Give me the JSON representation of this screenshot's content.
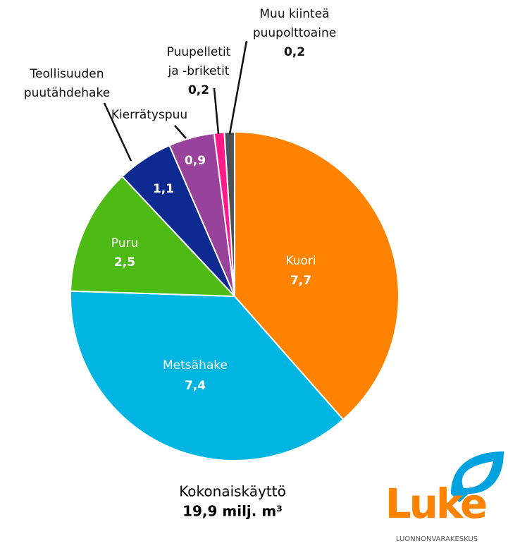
{
  "chart_data": {
    "type": "pie",
    "categories": [
      "Kuori",
      "Metsähake",
      "Puru",
      "Teollisuuden\npuutähdehake",
      "Kierrätyspuu",
      "Puupelletit\nja -briketit",
      "Muu kiinteä\npuupolttoaine"
    ],
    "values": [
      7.7,
      7.4,
      2.5,
      1.1,
      0.9,
      0.2,
      0.2
    ],
    "value_labels": [
      "7,7",
      "7,4",
      "2,5",
      "1,1",
      "0,9",
      "0,2",
      "0,2"
    ],
    "colors": [
      "#ff8200",
      "#00b5e2",
      "#4dbb14",
      "#0c2a8f",
      "#98429c",
      "#ff1a8c",
      "#4d5256"
    ],
    "annotations": [
      "Kokonaiskäyttö",
      "19,9 milj. m³"
    ]
  },
  "logo": {
    "name": "Luke",
    "subtitle": "LUONNONVARAKESKUS"
  }
}
